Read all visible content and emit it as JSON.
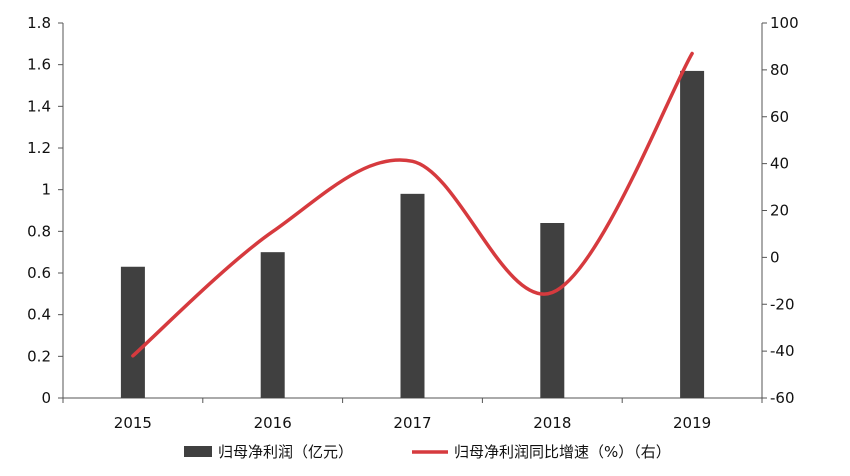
{
  "chart_data": {
    "type": "bar+line",
    "categories": [
      "2015",
      "2016",
      "2017",
      "2018",
      "2019"
    ],
    "series": [
      {
        "name": "归母净利润（亿元）",
        "type": "bar",
        "axis": "left",
        "color": "#404040",
        "values": [
          0.63,
          0.7,
          0.98,
          0.84,
          1.57
        ]
      },
      {
        "name": "归母净利润同比增速（%）（右）",
        "type": "line",
        "axis": "right",
        "color": "#d63a3e",
        "smooth": true,
        "values": [
          -42,
          11,
          41,
          -15,
          87
        ]
      }
    ],
    "y_left": {
      "min": 0,
      "max": 1.8,
      "ticks": [
        "0",
        "0.2",
        "0.4",
        "0.6",
        "0.8",
        "1",
        "1.2",
        "1.4",
        "1.6",
        "1.8"
      ]
    },
    "y_right": {
      "min": -60,
      "max": 100,
      "ticks": [
        "-60",
        "-40",
        "-20",
        "0",
        "20",
        "40",
        "60",
        "80",
        "100"
      ]
    },
    "title": "",
    "xlabel": "",
    "legend_position": "bottom",
    "grid": false
  }
}
